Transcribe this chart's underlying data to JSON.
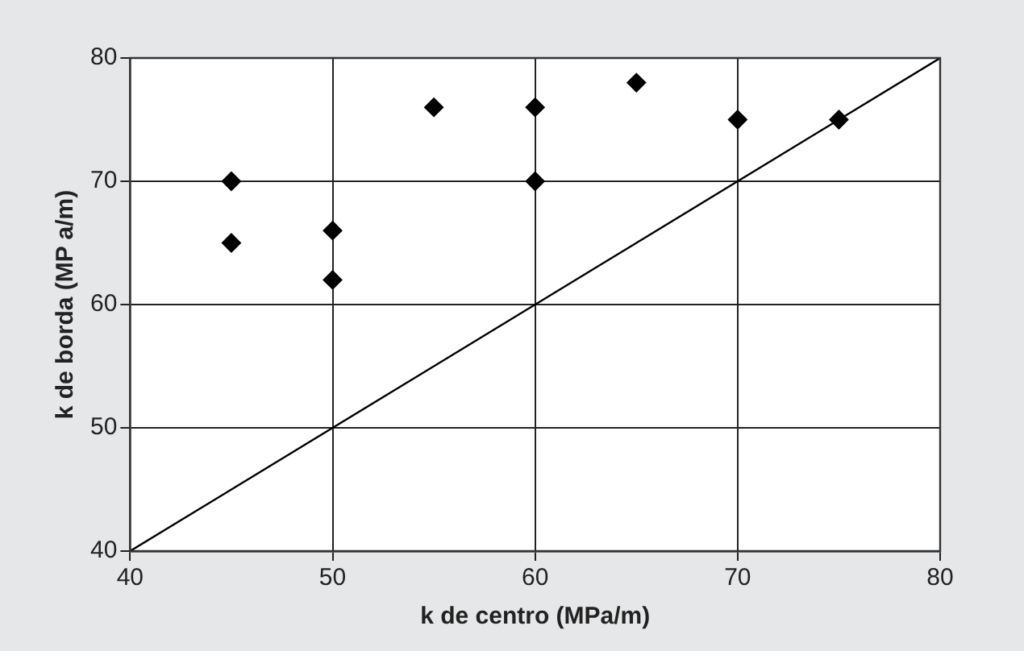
{
  "chart_data": {
    "type": "scatter",
    "xlabel": "k de centro (MPa/m)",
    "ylabel": "k de borda (MP a/m)",
    "xlim": [
      40,
      80
    ],
    "xticks": [
      40,
      50,
      60,
      70,
      80
    ],
    "ylim": [
      40,
      80
    ],
    "yticks": [
      40,
      50,
      60,
      70,
      80
    ],
    "grid": true,
    "legend": false,
    "series": [
      {
        "type": "scatter",
        "marker": "diamond",
        "color": "#000000",
        "x": [
          45,
          45,
          50,
          50,
          55,
          60,
          60,
          65,
          70,
          75
        ],
        "values": [
          70,
          65,
          66,
          62,
          76,
          76,
          70,
          78,
          75,
          75
        ]
      },
      {
        "type": "line",
        "marker": "none",
        "color": "#000000",
        "x": [
          40,
          80
        ],
        "values": [
          40,
          80
        ],
        "line_style": "solid"
      }
    ]
  }
}
